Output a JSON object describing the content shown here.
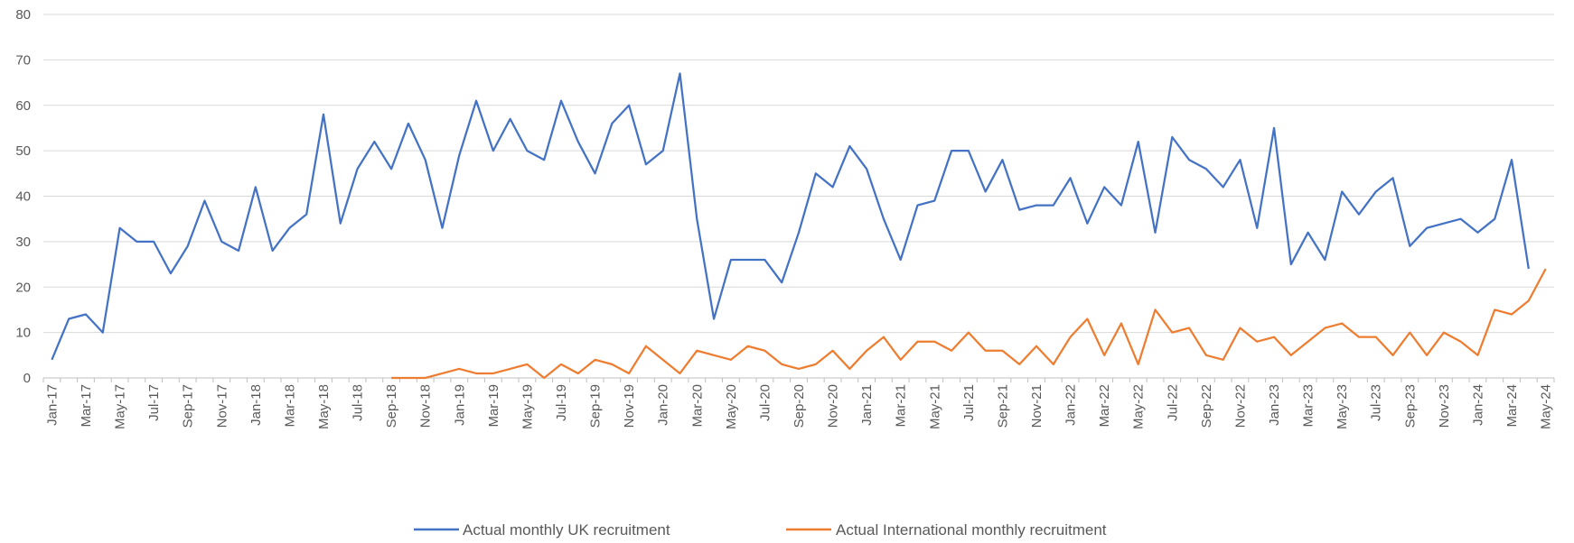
{
  "chart_data": {
    "type": "line",
    "title": "",
    "xlabel": "",
    "ylabel": "",
    "ylim": [
      0,
      80
    ],
    "yticks": [
      "0",
      "10",
      "20",
      "30",
      "40",
      "50",
      "60",
      "70",
      "80"
    ],
    "grid": "horizontal",
    "legend_position": "bottom",
    "x": [
      "Jan-17",
      "Feb-17",
      "Mar-17",
      "Apr-17",
      "May-17",
      "Jun-17",
      "Jul-17",
      "Aug-17",
      "Sep-17",
      "Oct-17",
      "Nov-17",
      "Dec-17",
      "Jan-18",
      "Feb-18",
      "Mar-18",
      "Apr-18",
      "May-18",
      "Jun-18",
      "Jul-18",
      "Aug-18",
      "Sep-18",
      "Oct-18",
      "Nov-18",
      "Dec-18",
      "Jan-19",
      "Feb-19",
      "Mar-19",
      "Apr-19",
      "May-19",
      "Jun-19",
      "Jul-19",
      "Aug-19",
      "Sep-19",
      "Oct-19",
      "Nov-19",
      "Dec-19",
      "Jan-20",
      "Feb-20",
      "Mar-20",
      "Apr-20",
      "May-20",
      "Jun-20",
      "Jul-20",
      "Aug-20",
      "Sep-20",
      "Oct-20",
      "Nov-20",
      "Dec-20",
      "Jan-21",
      "Feb-21",
      "Mar-21",
      "Apr-21",
      "May-21",
      "Jun-21",
      "Jul-21",
      "Aug-21",
      "Sep-21",
      "Oct-21",
      "Nov-21",
      "Dec-21",
      "Jan-22",
      "Feb-22",
      "Mar-22",
      "Apr-22",
      "May-22",
      "Jun-22",
      "Jul-22",
      "Aug-22",
      "Sep-22",
      "Oct-22",
      "Nov-22",
      "Dec-22",
      "Jan-23",
      "Feb-23",
      "Mar-23",
      "Apr-23",
      "May-23",
      "Jun-23",
      "Jul-23",
      "Aug-23",
      "Sep-23",
      "Oct-23",
      "Nov-23",
      "Dec-23",
      "Jan-24",
      "Feb-24",
      "Mar-24",
      "Apr-24",
      "May-24"
    ],
    "xtick_labels": [
      "Jan-17",
      "Mar-17",
      "May-17",
      "Jul-17",
      "Sep-17",
      "Nov-17",
      "Jan-18",
      "Mar-18",
      "May-18",
      "Jul-18",
      "Sep-18",
      "Nov-18",
      "Jan-19",
      "Mar-19",
      "May-19",
      "Jul-19",
      "Sep-19",
      "Nov-19",
      "Jan-20",
      "Mar-20",
      "May-20",
      "Jul-20",
      "Sep-20",
      "Nov-20",
      "Jan-21",
      "Mar-21",
      "May-21",
      "Jul-21",
      "Sep-21",
      "Nov-21",
      "Jan-22",
      "Mar-22",
      "May-22",
      "Jul-22",
      "Sep-22",
      "Nov-22",
      "Jan-23",
      "Mar-23",
      "May-23",
      "Jul-23",
      "Sep-23",
      "Nov-23",
      "Jan-24",
      "Mar-24",
      "May-24"
    ],
    "series": [
      {
        "name": "Actual monthly  UK recruitment",
        "color": "#4472c4",
        "values": [
          4,
          13,
          14,
          10,
          33,
          30,
          30,
          23,
          29,
          39,
          30,
          28,
          42,
          28,
          33,
          36,
          58,
          34,
          46,
          52,
          46,
          56,
          48,
          33,
          49,
          61,
          50,
          57,
          50,
          48,
          61,
          52,
          45,
          56,
          60,
          47,
          50,
          67,
          35,
          13,
          26,
          26,
          26,
          21,
          32,
          45,
          42,
          51,
          46,
          35,
          26,
          38,
          39,
          50,
          50,
          41,
          48,
          37,
          38,
          38,
          44,
          34,
          42,
          38,
          52,
          32,
          53,
          48,
          46,
          42,
          48,
          33,
          55,
          25,
          32,
          26,
          41,
          36,
          41,
          44,
          29,
          33,
          34,
          35,
          32,
          35,
          48,
          24,
          null
        ]
      },
      {
        "name": "Actual International monthly recruitment",
        "color": "#ed7d31",
        "values": [
          null,
          null,
          null,
          null,
          null,
          null,
          null,
          null,
          null,
          null,
          null,
          null,
          null,
          null,
          null,
          null,
          null,
          null,
          null,
          null,
          0,
          0,
          0,
          1,
          2,
          1,
          1,
          2,
          3,
          0,
          3,
          1,
          4,
          3,
          1,
          7,
          4,
          1,
          6,
          5,
          4,
          7,
          6,
          3,
          2,
          3,
          6,
          2,
          6,
          9,
          4,
          8,
          8,
          6,
          10,
          6,
          6,
          3,
          7,
          3,
          9,
          13,
          5,
          12,
          3,
          15,
          10,
          11,
          5,
          4,
          11,
          8,
          9,
          5,
          8,
          11,
          12,
          9,
          9,
          5,
          10,
          5,
          10,
          8,
          5,
          15,
          14,
          17,
          24
        ]
      }
    ]
  }
}
